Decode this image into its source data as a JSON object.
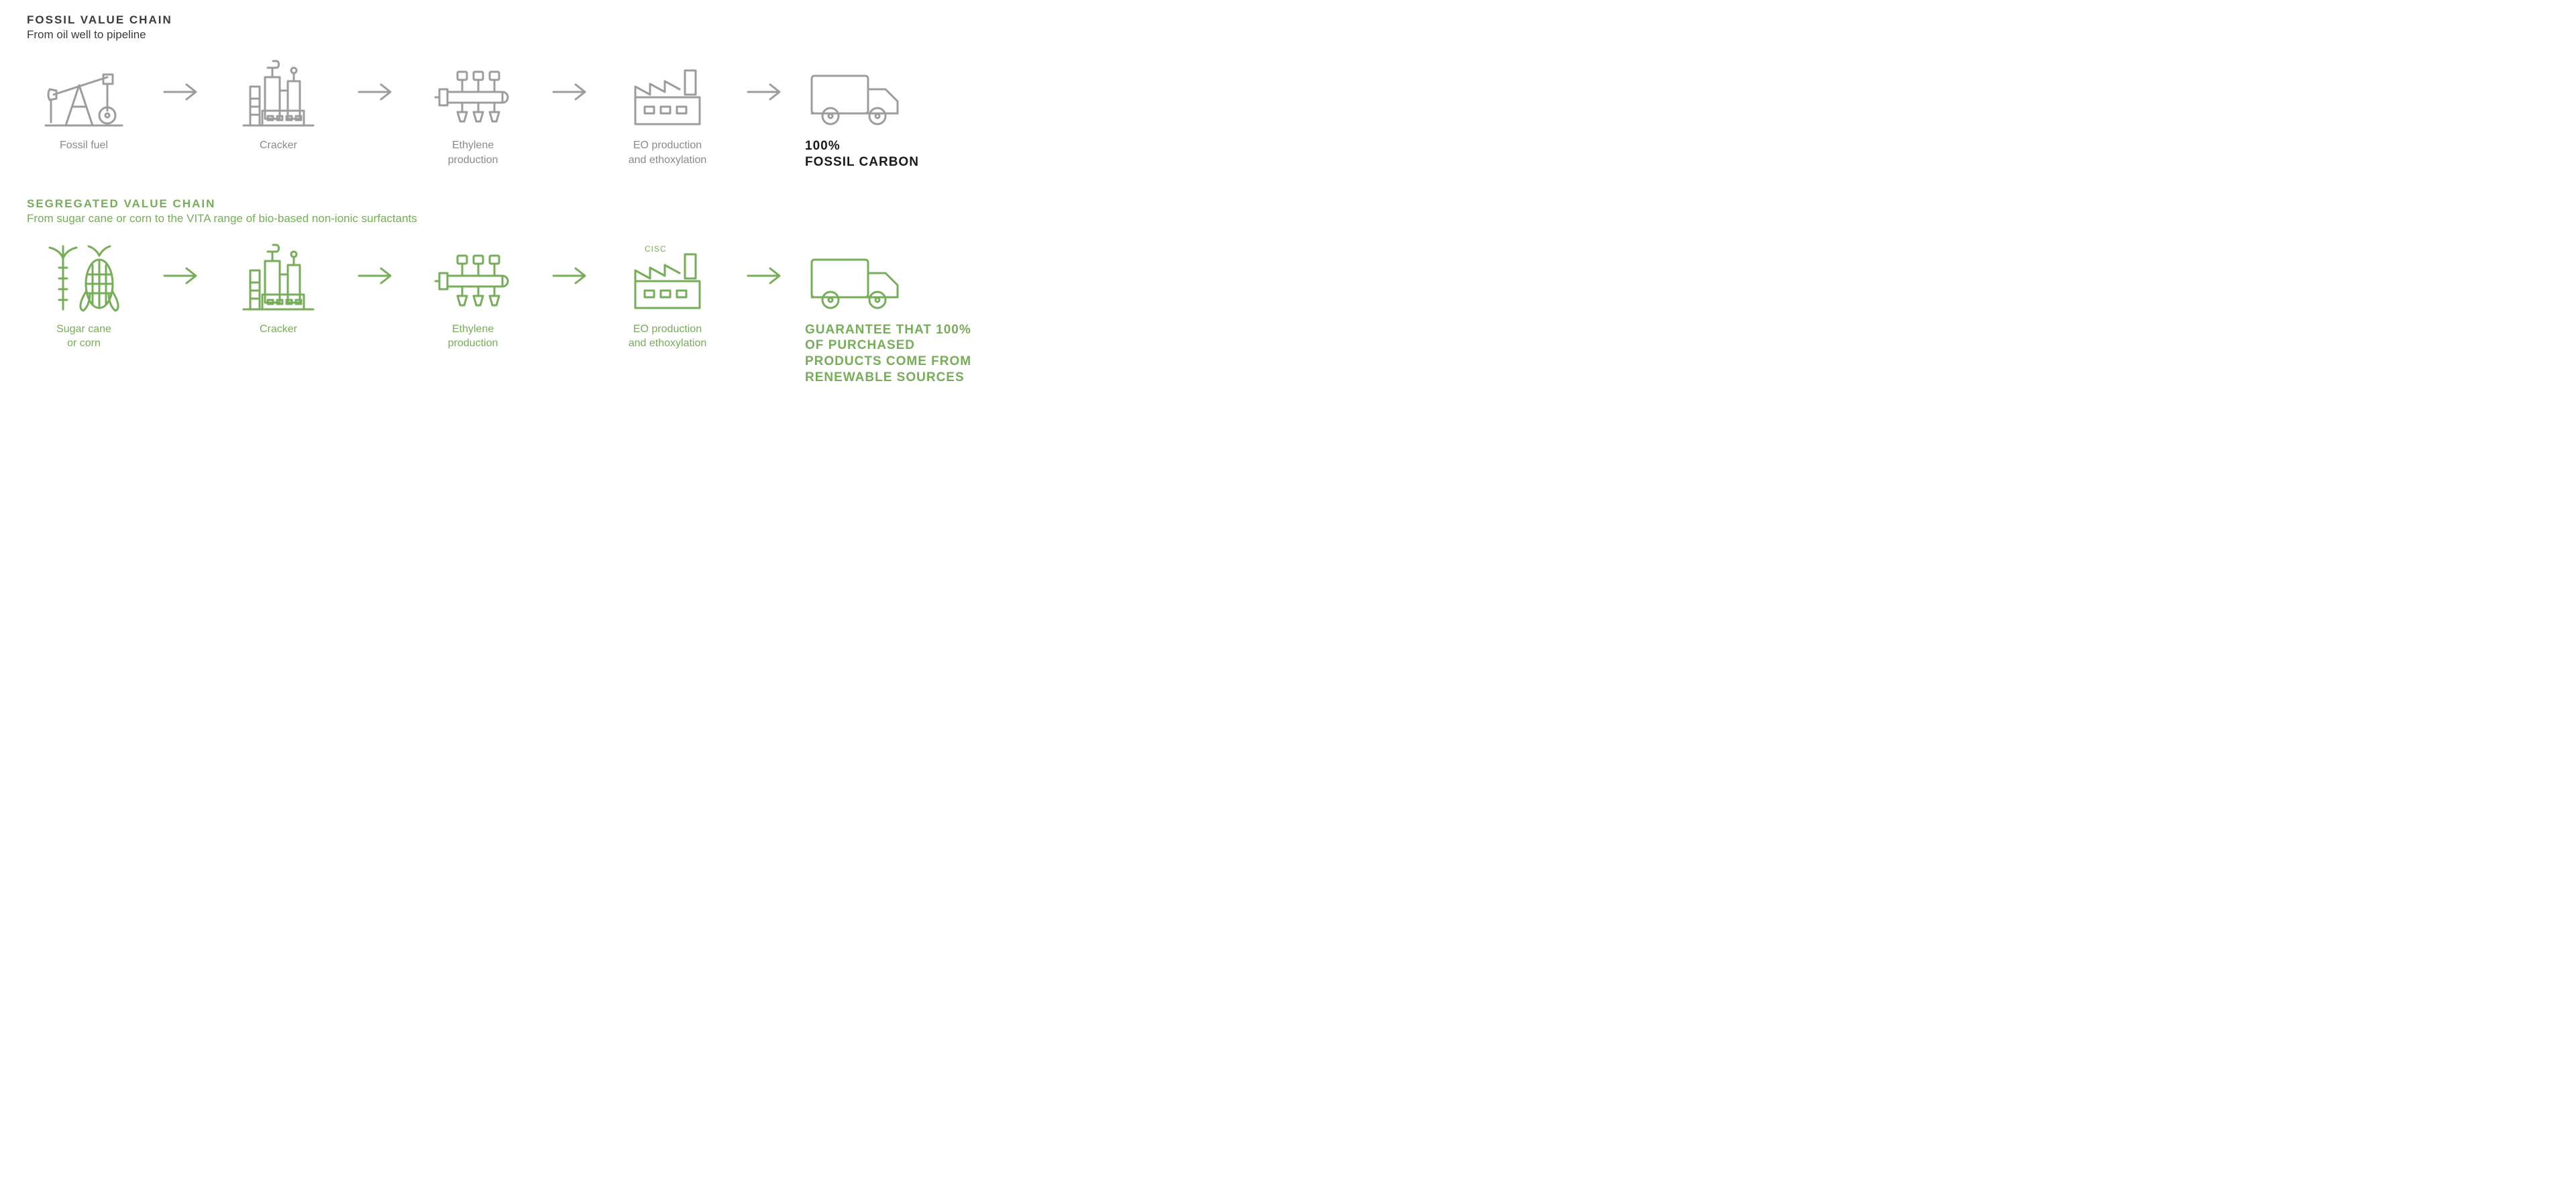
{
  "colors": {
    "gray_stroke": "#9c9c9c",
    "gray_text": "#8a8a8a",
    "dark_text": "#1a1a1a",
    "green_stroke": "#76ad58",
    "green_text": "#76ad58",
    "background": "#ffffff"
  },
  "stroke_width": 3,
  "arrow_stroke_width": 3,
  "fossil_chain": {
    "title": "FOSSIL VALUE CHAIN",
    "subtitle": "From oil well to pipeline",
    "steps": [
      {
        "id": "fossil-fuel",
        "label": "Fossil fuel",
        "icon": "pumpjack"
      },
      {
        "id": "cracker",
        "label": "Cracker",
        "icon": "cracker"
      },
      {
        "id": "ethylene",
        "label": "Ethylene\nproduction",
        "icon": "ethylene"
      },
      {
        "id": "eo",
        "label": "EO production\nand ethoxylation",
        "icon": "factory"
      },
      {
        "id": "final",
        "label": "100%\nFOSSIL CARBON",
        "icon": "truck",
        "final": true
      }
    ]
  },
  "segregated_chain": {
    "title": "SEGREGATED VALUE CHAIN",
    "subtitle": "From sugar cane or corn to the VITA range of bio-based non-ionic surfactants",
    "steps": [
      {
        "id": "sugar-corn",
        "label": "Sugar cane\nor corn",
        "icon": "plants"
      },
      {
        "id": "cracker-g",
        "label": "Cracker",
        "icon": "cracker"
      },
      {
        "id": "ethylene-g",
        "label": "Ethylene\nproduction",
        "icon": "ethylene"
      },
      {
        "id": "eo-g",
        "label": "EO production\nand ethoxylation",
        "icon": "factory-cisc",
        "badge": "CISC"
      },
      {
        "id": "final-g",
        "label": "GUARANTEE THAT 100% OF PURCHASED PRODUCTS COME FROM RENEWABLE SOURCES",
        "icon": "truck",
        "final": true
      }
    ]
  }
}
